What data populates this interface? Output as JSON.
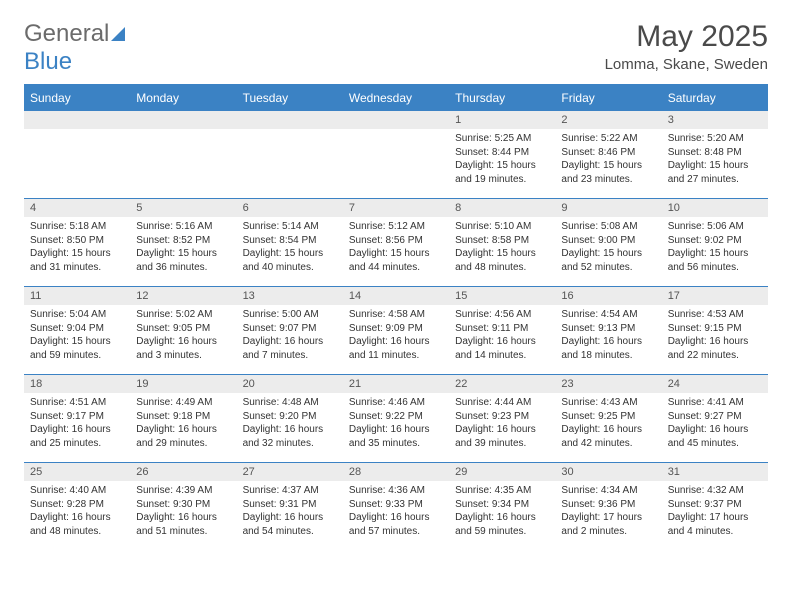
{
  "brand": {
    "part1": "General",
    "part2": "Blue"
  },
  "title": "May 2025",
  "location": "Lomma, Skane, Sweden",
  "headers": [
    "Sunday",
    "Monday",
    "Tuesday",
    "Wednesday",
    "Thursday",
    "Friday",
    "Saturday"
  ],
  "colors": {
    "accent": "#3b82c4",
    "header_bg": "#3b82c4",
    "daynum_bg": "#ececec",
    "text": "#333333"
  },
  "weeks": [
    [
      {
        "n": "",
        "sr": "",
        "ss": "",
        "dl": ""
      },
      {
        "n": "",
        "sr": "",
        "ss": "",
        "dl": ""
      },
      {
        "n": "",
        "sr": "",
        "ss": "",
        "dl": ""
      },
      {
        "n": "",
        "sr": "",
        "ss": "",
        "dl": ""
      },
      {
        "n": "1",
        "sr": "Sunrise: 5:25 AM",
        "ss": "Sunset: 8:44 PM",
        "dl": "Daylight: 15 hours and 19 minutes."
      },
      {
        "n": "2",
        "sr": "Sunrise: 5:22 AM",
        "ss": "Sunset: 8:46 PM",
        "dl": "Daylight: 15 hours and 23 minutes."
      },
      {
        "n": "3",
        "sr": "Sunrise: 5:20 AM",
        "ss": "Sunset: 8:48 PM",
        "dl": "Daylight: 15 hours and 27 minutes."
      }
    ],
    [
      {
        "n": "4",
        "sr": "Sunrise: 5:18 AM",
        "ss": "Sunset: 8:50 PM",
        "dl": "Daylight: 15 hours and 31 minutes."
      },
      {
        "n": "5",
        "sr": "Sunrise: 5:16 AM",
        "ss": "Sunset: 8:52 PM",
        "dl": "Daylight: 15 hours and 36 minutes."
      },
      {
        "n": "6",
        "sr": "Sunrise: 5:14 AM",
        "ss": "Sunset: 8:54 PM",
        "dl": "Daylight: 15 hours and 40 minutes."
      },
      {
        "n": "7",
        "sr": "Sunrise: 5:12 AM",
        "ss": "Sunset: 8:56 PM",
        "dl": "Daylight: 15 hours and 44 minutes."
      },
      {
        "n": "8",
        "sr": "Sunrise: 5:10 AM",
        "ss": "Sunset: 8:58 PM",
        "dl": "Daylight: 15 hours and 48 minutes."
      },
      {
        "n": "9",
        "sr": "Sunrise: 5:08 AM",
        "ss": "Sunset: 9:00 PM",
        "dl": "Daylight: 15 hours and 52 minutes."
      },
      {
        "n": "10",
        "sr": "Sunrise: 5:06 AM",
        "ss": "Sunset: 9:02 PM",
        "dl": "Daylight: 15 hours and 56 minutes."
      }
    ],
    [
      {
        "n": "11",
        "sr": "Sunrise: 5:04 AM",
        "ss": "Sunset: 9:04 PM",
        "dl": "Daylight: 15 hours and 59 minutes."
      },
      {
        "n": "12",
        "sr": "Sunrise: 5:02 AM",
        "ss": "Sunset: 9:05 PM",
        "dl": "Daylight: 16 hours and 3 minutes."
      },
      {
        "n": "13",
        "sr": "Sunrise: 5:00 AM",
        "ss": "Sunset: 9:07 PM",
        "dl": "Daylight: 16 hours and 7 minutes."
      },
      {
        "n": "14",
        "sr": "Sunrise: 4:58 AM",
        "ss": "Sunset: 9:09 PM",
        "dl": "Daylight: 16 hours and 11 minutes."
      },
      {
        "n": "15",
        "sr": "Sunrise: 4:56 AM",
        "ss": "Sunset: 9:11 PM",
        "dl": "Daylight: 16 hours and 14 minutes."
      },
      {
        "n": "16",
        "sr": "Sunrise: 4:54 AM",
        "ss": "Sunset: 9:13 PM",
        "dl": "Daylight: 16 hours and 18 minutes."
      },
      {
        "n": "17",
        "sr": "Sunrise: 4:53 AM",
        "ss": "Sunset: 9:15 PM",
        "dl": "Daylight: 16 hours and 22 minutes."
      }
    ],
    [
      {
        "n": "18",
        "sr": "Sunrise: 4:51 AM",
        "ss": "Sunset: 9:17 PM",
        "dl": "Daylight: 16 hours and 25 minutes."
      },
      {
        "n": "19",
        "sr": "Sunrise: 4:49 AM",
        "ss": "Sunset: 9:18 PM",
        "dl": "Daylight: 16 hours and 29 minutes."
      },
      {
        "n": "20",
        "sr": "Sunrise: 4:48 AM",
        "ss": "Sunset: 9:20 PM",
        "dl": "Daylight: 16 hours and 32 minutes."
      },
      {
        "n": "21",
        "sr": "Sunrise: 4:46 AM",
        "ss": "Sunset: 9:22 PM",
        "dl": "Daylight: 16 hours and 35 minutes."
      },
      {
        "n": "22",
        "sr": "Sunrise: 4:44 AM",
        "ss": "Sunset: 9:23 PM",
        "dl": "Daylight: 16 hours and 39 minutes."
      },
      {
        "n": "23",
        "sr": "Sunrise: 4:43 AM",
        "ss": "Sunset: 9:25 PM",
        "dl": "Daylight: 16 hours and 42 minutes."
      },
      {
        "n": "24",
        "sr": "Sunrise: 4:41 AM",
        "ss": "Sunset: 9:27 PM",
        "dl": "Daylight: 16 hours and 45 minutes."
      }
    ],
    [
      {
        "n": "25",
        "sr": "Sunrise: 4:40 AM",
        "ss": "Sunset: 9:28 PM",
        "dl": "Daylight: 16 hours and 48 minutes."
      },
      {
        "n": "26",
        "sr": "Sunrise: 4:39 AM",
        "ss": "Sunset: 9:30 PM",
        "dl": "Daylight: 16 hours and 51 minutes."
      },
      {
        "n": "27",
        "sr": "Sunrise: 4:37 AM",
        "ss": "Sunset: 9:31 PM",
        "dl": "Daylight: 16 hours and 54 minutes."
      },
      {
        "n": "28",
        "sr": "Sunrise: 4:36 AM",
        "ss": "Sunset: 9:33 PM",
        "dl": "Daylight: 16 hours and 57 minutes."
      },
      {
        "n": "29",
        "sr": "Sunrise: 4:35 AM",
        "ss": "Sunset: 9:34 PM",
        "dl": "Daylight: 16 hours and 59 minutes."
      },
      {
        "n": "30",
        "sr": "Sunrise: 4:34 AM",
        "ss": "Sunset: 9:36 PM",
        "dl": "Daylight: 17 hours and 2 minutes."
      },
      {
        "n": "31",
        "sr": "Sunrise: 4:32 AM",
        "ss": "Sunset: 9:37 PM",
        "dl": "Daylight: 17 hours and 4 minutes."
      }
    ]
  ]
}
